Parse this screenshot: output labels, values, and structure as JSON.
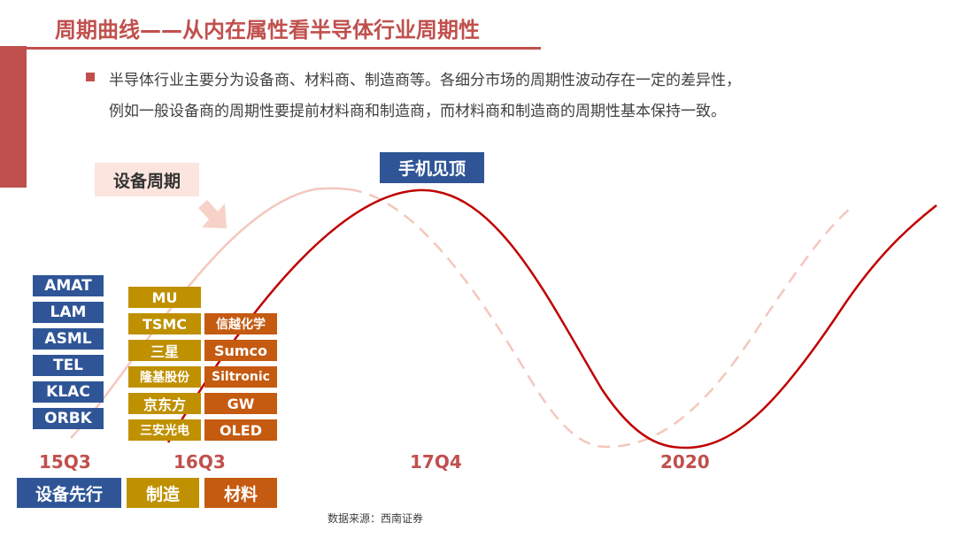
{
  "header": {
    "title": "周期曲线——从内在属性看半导体行业周期性"
  },
  "intro": {
    "line1": "半导体行业主要分为设备商、材料商、制造商等。各细分市场的周期性波动存在一定的差异性，",
    "line2": "例如一般设备商的周期性要提前材料商和制造商，而材料商和制造商的周期性基本保持一致。"
  },
  "labels": {
    "equipment_cycle": "设备周期",
    "phone_peak": "手机见顶"
  },
  "equipment_companies": [
    "AMAT",
    "LAM",
    "ASML",
    "TEL",
    "KLAC",
    "ORBK"
  ],
  "manufacturing_companies": [
    "MU",
    "TSMC",
    "三星",
    "隆基股份",
    "京东方",
    "三安光电"
  ],
  "material_companies": [
    "信越化学",
    "Sumco",
    "Siltronic",
    "GW",
    "OLED"
  ],
  "timeline": [
    "15Q3",
    "16Q3",
    "17Q4",
    "2020"
  ],
  "categories": {
    "equipment_first": "设备先行",
    "manufacturing": "制造",
    "materials": "材料"
  },
  "source": "数据来源：西南证券",
  "colors": {
    "accent": "#c0504d",
    "blue": "#2f5597",
    "gold": "#bf9000",
    "orange": "#c55a11",
    "main_curve": "#c00000",
    "equip_curve": "#f4c7bd"
  }
}
